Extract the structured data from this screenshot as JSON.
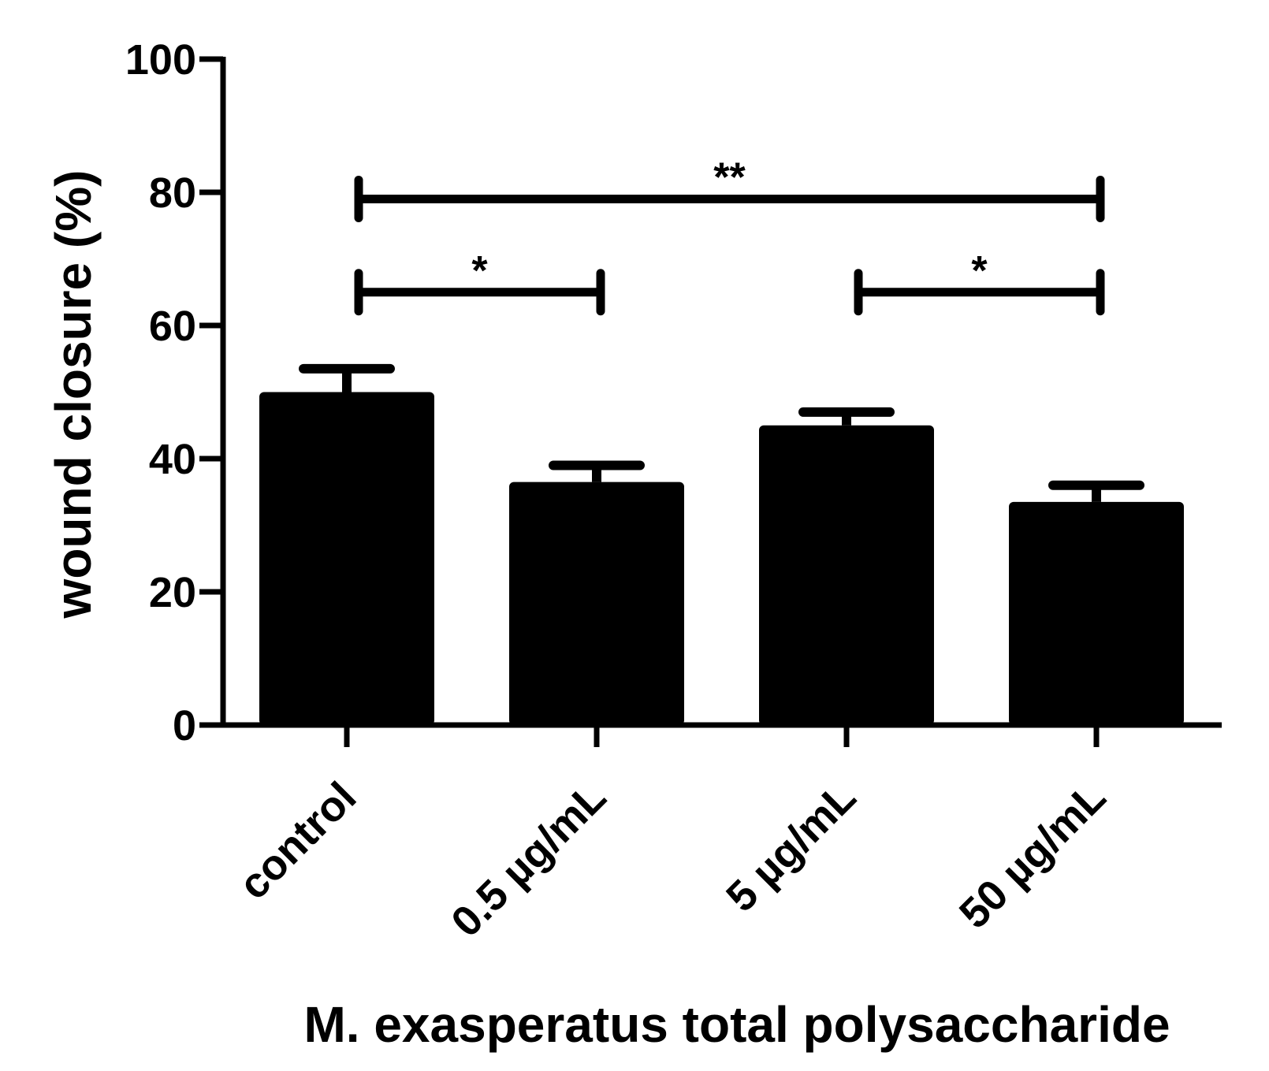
{
  "chart_data": {
    "type": "bar",
    "categories": [
      "control",
      "0.5 µg/mL",
      "5 µg/mL",
      "50 µg/mL"
    ],
    "values": [
      50,
      36.5,
      45,
      33.5
    ],
    "errors": [
      3.5,
      2.5,
      2,
      2.5
    ],
    "xlabel": "M. exasperatus total polysaccharide",
    "ylabel": "wound closure (%)",
    "ylim": [
      0,
      100
    ],
    "yticks": [
      0,
      20,
      40,
      60,
      80,
      100
    ],
    "bar_color": "#000000",
    "grid": false,
    "significance": [
      {
        "from": 0,
        "to": 3,
        "y": 79,
        "label": "**"
      },
      {
        "from": 0,
        "to": 1,
        "y": 65,
        "label": "*"
      },
      {
        "from": 2,
        "to": 3,
        "y": 65,
        "label": "*"
      }
    ]
  }
}
